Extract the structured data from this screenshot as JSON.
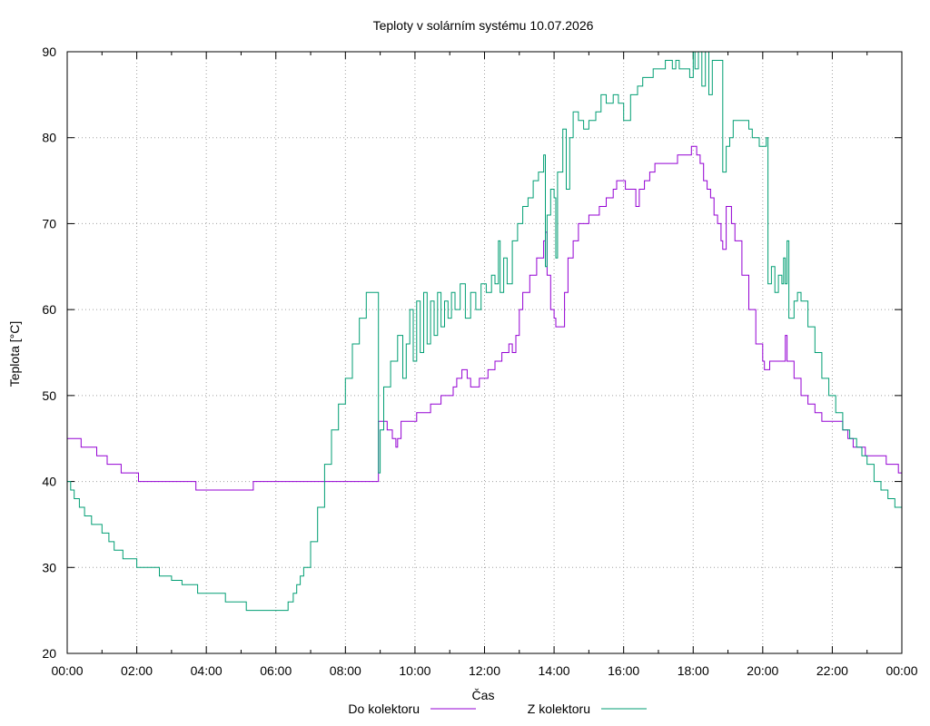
{
  "chart_data": {
    "type": "line",
    "title": "Teploty v solárním systému 10.07.2026",
    "xlabel": "Čas",
    "ylabel": "Teplota [°C]",
    "xlim": [
      0,
      24
    ],
    "ylim": [
      20,
      90
    ],
    "grid": true,
    "legend_position": "bottom-center",
    "x_ticks": [
      0,
      2,
      4,
      6,
      8,
      10,
      12,
      14,
      16,
      18,
      20,
      22,
      24
    ],
    "x_tick_labels": [
      "00:00",
      "02:00",
      "04:00",
      "06:00",
      "08:00",
      "10:00",
      "12:00",
      "14:00",
      "16:00",
      "18:00",
      "20:00",
      "22:00",
      "00:00"
    ],
    "y_ticks": [
      20,
      30,
      40,
      50,
      60,
      70,
      80,
      90
    ],
    "y_tick_labels": [
      "20",
      "30",
      "40",
      "50",
      "60",
      "70",
      "80",
      "90"
    ],
    "series": [
      {
        "name": "Do kolektoru",
        "color": "#9400d3",
        "points": [
          [
            0.0,
            45
          ],
          [
            0.35,
            45
          ],
          [
            0.4,
            44
          ],
          [
            0.8,
            44
          ],
          [
            0.85,
            43
          ],
          [
            1.1,
            43
          ],
          [
            1.15,
            42
          ],
          [
            1.5,
            42
          ],
          [
            1.55,
            41
          ],
          [
            2.0,
            41
          ],
          [
            2.05,
            40
          ],
          [
            3.6,
            40
          ],
          [
            3.7,
            39
          ],
          [
            5.3,
            39
          ],
          [
            5.35,
            40
          ],
          [
            8.9,
            40
          ],
          [
            8.95,
            47
          ],
          [
            9.15,
            47
          ],
          [
            9.2,
            46
          ],
          [
            9.35,
            45
          ],
          [
            9.45,
            44
          ],
          [
            9.5,
            45
          ],
          [
            9.6,
            47
          ],
          [
            10.0,
            47
          ],
          [
            10.05,
            48
          ],
          [
            10.4,
            48
          ],
          [
            10.45,
            49
          ],
          [
            10.7,
            49
          ],
          [
            10.75,
            50
          ],
          [
            11.0,
            50
          ],
          [
            11.1,
            51
          ],
          [
            11.2,
            52
          ],
          [
            11.3,
            52
          ],
          [
            11.35,
            53
          ],
          [
            11.5,
            52
          ],
          [
            11.6,
            51
          ],
          [
            11.8,
            51
          ],
          [
            11.85,
            52
          ],
          [
            12.0,
            52
          ],
          [
            12.1,
            53
          ],
          [
            12.3,
            54
          ],
          [
            12.5,
            55
          ],
          [
            12.7,
            56
          ],
          [
            12.8,
            55
          ],
          [
            12.9,
            57
          ],
          [
            13.0,
            60
          ],
          [
            13.1,
            62
          ],
          [
            13.3,
            64
          ],
          [
            13.5,
            66
          ],
          [
            13.7,
            68
          ],
          [
            13.75,
            69
          ],
          [
            13.8,
            64
          ],
          [
            13.9,
            60
          ],
          [
            14.0,
            59
          ],
          [
            14.05,
            58
          ],
          [
            14.2,
            58
          ],
          [
            14.3,
            62
          ],
          [
            14.4,
            66
          ],
          [
            14.55,
            68
          ],
          [
            14.7,
            70
          ],
          [
            15.0,
            71
          ],
          [
            15.3,
            72
          ],
          [
            15.5,
            73
          ],
          [
            15.7,
            74
          ],
          [
            15.8,
            75
          ],
          [
            16.0,
            75
          ],
          [
            16.05,
            74
          ],
          [
            16.25,
            74
          ],
          [
            16.35,
            72
          ],
          [
            16.45,
            74
          ],
          [
            16.6,
            75
          ],
          [
            16.75,
            76
          ],
          [
            16.9,
            77
          ],
          [
            17.5,
            77
          ],
          [
            17.55,
            78
          ],
          [
            17.9,
            78
          ],
          [
            17.95,
            79
          ],
          [
            18.1,
            78
          ],
          [
            18.2,
            77
          ],
          [
            18.3,
            75
          ],
          [
            18.4,
            74
          ],
          [
            18.5,
            73
          ],
          [
            18.6,
            71
          ],
          [
            18.7,
            70
          ],
          [
            18.8,
            68
          ],
          [
            18.85,
            67
          ],
          [
            18.95,
            72
          ],
          [
            19.1,
            70
          ],
          [
            19.2,
            68
          ],
          [
            19.4,
            64
          ],
          [
            19.6,
            60
          ],
          [
            19.8,
            56
          ],
          [
            20.0,
            54
          ],
          [
            20.05,
            53
          ],
          [
            20.2,
            54
          ],
          [
            20.6,
            54
          ],
          [
            20.65,
            57
          ],
          [
            20.7,
            54
          ],
          [
            20.9,
            52
          ],
          [
            21.1,
            50
          ],
          [
            21.3,
            49
          ],
          [
            21.5,
            48
          ],
          [
            21.7,
            47
          ],
          [
            22.2,
            47
          ],
          [
            22.3,
            46
          ],
          [
            22.45,
            45
          ],
          [
            22.6,
            44
          ],
          [
            22.9,
            44
          ],
          [
            22.95,
            43
          ],
          [
            23.5,
            43
          ],
          [
            23.55,
            42
          ],
          [
            23.85,
            42
          ],
          [
            23.9,
            41
          ],
          [
            24.0,
            41
          ]
        ]
      },
      {
        "name": "Z kolektoru",
        "color": "#009e73",
        "points": [
          [
            0.0,
            40
          ],
          [
            0.1,
            39
          ],
          [
            0.2,
            38
          ],
          [
            0.35,
            37
          ],
          [
            0.5,
            36
          ],
          [
            0.7,
            35
          ],
          [
            1.0,
            34
          ],
          [
            1.2,
            33
          ],
          [
            1.35,
            32
          ],
          [
            1.6,
            31
          ],
          [
            2.0,
            30
          ],
          [
            2.6,
            30
          ],
          [
            2.65,
            29
          ],
          [
            3.0,
            28.5
          ],
          [
            3.3,
            28
          ],
          [
            3.7,
            28
          ],
          [
            3.75,
            27
          ],
          [
            4.5,
            27
          ],
          [
            4.55,
            26
          ],
          [
            5.1,
            26
          ],
          [
            5.15,
            25
          ],
          [
            6.2,
            25
          ],
          [
            6.35,
            26
          ],
          [
            6.5,
            27
          ],
          [
            6.6,
            28
          ],
          [
            6.7,
            29
          ],
          [
            6.8,
            30
          ],
          [
            7.0,
            33
          ],
          [
            7.2,
            37
          ],
          [
            7.4,
            42
          ],
          [
            7.6,
            46
          ],
          [
            7.8,
            49
          ],
          [
            8.0,
            52
          ],
          [
            8.2,
            56
          ],
          [
            8.4,
            59
          ],
          [
            8.6,
            62
          ],
          [
            8.9,
            62
          ],
          [
            8.95,
            41
          ],
          [
            9.0,
            46
          ],
          [
            9.1,
            51
          ],
          [
            9.3,
            54
          ],
          [
            9.5,
            57
          ],
          [
            9.65,
            52
          ],
          [
            9.75,
            56
          ],
          [
            9.85,
            60
          ],
          [
            9.95,
            54
          ],
          [
            10.05,
            61
          ],
          [
            10.15,
            55
          ],
          [
            10.25,
            62
          ],
          [
            10.35,
            56
          ],
          [
            10.45,
            61
          ],
          [
            10.55,
            57
          ],
          [
            10.65,
            62
          ],
          [
            10.75,
            58
          ],
          [
            10.85,
            61
          ],
          [
            10.95,
            59
          ],
          [
            11.05,
            62
          ],
          [
            11.15,
            60
          ],
          [
            11.3,
            63
          ],
          [
            11.45,
            59
          ],
          [
            11.6,
            62
          ],
          [
            11.75,
            60
          ],
          [
            11.9,
            63
          ],
          [
            12.05,
            62
          ],
          [
            12.2,
            64
          ],
          [
            12.3,
            63
          ],
          [
            12.4,
            68
          ],
          [
            12.45,
            62
          ],
          [
            12.55,
            66
          ],
          [
            12.65,
            63
          ],
          [
            12.8,
            68
          ],
          [
            12.95,
            70
          ],
          [
            13.1,
            72
          ],
          [
            13.25,
            73
          ],
          [
            13.4,
            75
          ],
          [
            13.55,
            76
          ],
          [
            13.7,
            78
          ],
          [
            13.75,
            65
          ],
          [
            13.8,
            71
          ],
          [
            13.9,
            74
          ],
          [
            14.0,
            73
          ],
          [
            14.05,
            66
          ],
          [
            14.1,
            76
          ],
          [
            14.25,
            81
          ],
          [
            14.35,
            74
          ],
          [
            14.45,
            80
          ],
          [
            14.55,
            83
          ],
          [
            14.7,
            82
          ],
          [
            14.85,
            81
          ],
          [
            15.0,
            82
          ],
          [
            15.2,
            83
          ],
          [
            15.35,
            85
          ],
          [
            15.5,
            84
          ],
          [
            15.7,
            85
          ],
          [
            15.85,
            84
          ],
          [
            16.0,
            82
          ],
          [
            16.2,
            85
          ],
          [
            16.4,
            86
          ],
          [
            16.55,
            87
          ],
          [
            16.7,
            87
          ],
          [
            16.85,
            88
          ],
          [
            17.0,
            88
          ],
          [
            17.2,
            89
          ],
          [
            17.4,
            88
          ],
          [
            17.5,
            89
          ],
          [
            17.6,
            88
          ],
          [
            17.8,
            88
          ],
          [
            17.9,
            87
          ],
          [
            18.0,
            90
          ],
          [
            18.05,
            88
          ],
          [
            18.15,
            91
          ],
          [
            18.25,
            86
          ],
          [
            18.35,
            90
          ],
          [
            18.45,
            85
          ],
          [
            18.55,
            89
          ],
          [
            18.65,
            89
          ],
          [
            18.75,
            89
          ],
          [
            18.85,
            76
          ],
          [
            18.95,
            79
          ],
          [
            19.05,
            80
          ],
          [
            19.15,
            82
          ],
          [
            19.45,
            82
          ],
          [
            19.6,
            81
          ],
          [
            19.7,
            80
          ],
          [
            19.9,
            79
          ],
          [
            20.05,
            79
          ],
          [
            20.1,
            80
          ],
          [
            20.15,
            63
          ],
          [
            20.25,
            65
          ],
          [
            20.35,
            62
          ],
          [
            20.45,
            64
          ],
          [
            20.55,
            63
          ],
          [
            20.6,
            66
          ],
          [
            20.65,
            63
          ],
          [
            20.7,
            68
          ],
          [
            20.75,
            59
          ],
          [
            20.9,
            61
          ],
          [
            21.0,
            62
          ],
          [
            21.1,
            61
          ],
          [
            21.3,
            58
          ],
          [
            21.5,
            55
          ],
          [
            21.7,
            52
          ],
          [
            21.9,
            50
          ],
          [
            22.1,
            48
          ],
          [
            22.3,
            46
          ],
          [
            22.5,
            45
          ],
          [
            22.7,
            44
          ],
          [
            22.85,
            43
          ],
          [
            23.0,
            42
          ],
          [
            23.2,
            40
          ],
          [
            23.4,
            39
          ],
          [
            23.6,
            38
          ],
          [
            23.8,
            37
          ],
          [
            24.0,
            36
          ]
        ]
      }
    ]
  }
}
